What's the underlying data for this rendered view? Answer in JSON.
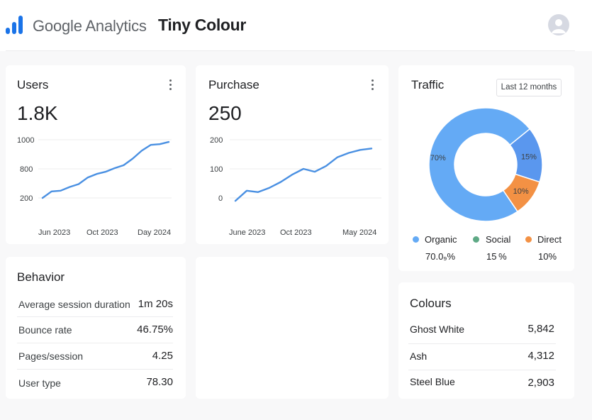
{
  "header": {
    "brand": "Google Analytics",
    "property": "Tiny Colour"
  },
  "users_card": {
    "title": "Users",
    "value": "1.8K",
    "y_ticks": [
      "1000",
      "800",
      "200"
    ],
    "x_ticks": [
      "Jun 2023",
      "Oct 2023",
      "Day 2024"
    ]
  },
  "purchase_card": {
    "title": "Purchase",
    "value": "250",
    "y_ticks": [
      "200",
      "100",
      "0"
    ],
    "x_ticks": [
      "June 2023",
      "Oct 2023",
      "May 2024"
    ]
  },
  "traffic_card": {
    "title": "Traffic",
    "range": "Last 12 months",
    "legend": [
      {
        "label": "Organic",
        "value": "70.0₉%",
        "color": "#64aaf5"
      },
      {
        "label": "Social",
        "value": "15 %",
        "color": "#5ea985"
      },
      {
        "label": "Direct",
        "value": "10%",
        "color": "#f39144"
      }
    ]
  },
  "behavior_card": {
    "title": "Behavior",
    "rows": [
      {
        "label": "Average session duration",
        "value": "1m 20s"
      },
      {
        "label": "Bounce rate",
        "value": "46.75%"
      },
      {
        "label": "Pages/session",
        "value": "4.25"
      },
      {
        "label": "User type",
        "value": "78.30"
      }
    ]
  },
  "colours_card": {
    "title": "Colours",
    "rows": [
      {
        "label": "Ghost White",
        "value": "5,842"
      },
      {
        "label": "Ash",
        "value": "4,312"
      },
      {
        "label": "Steel Blue",
        "value": "2,903"
      }
    ]
  },
  "chart_data": [
    {
      "type": "line",
      "title": "Users",
      "x": [
        "2023-04",
        "2023-05",
        "2023-06",
        "2023-07",
        "2023-08",
        "2023-09",
        "2023-10",
        "2023-11",
        "2023-12",
        "2024-01",
        "2024-02",
        "2024-03",
        "2024-04",
        "2024-05",
        "2024-06"
      ],
      "y": [
        200,
        290,
        300,
        350,
        390,
        480,
        530,
        560,
        610,
        650,
        740,
        850,
        930,
        940,
        970
      ],
      "x_ticks": [
        "Jun 2023",
        "Oct 2023",
        "Day 2024"
      ],
      "y_ticks": [
        "1000",
        "800",
        "200"
      ],
      "color": "#4a90e2"
    },
    {
      "type": "line",
      "title": "Purchase",
      "x": [
        "2023-05",
        "2023-06",
        "2023-07",
        "2023-08",
        "2023-09",
        "2023-10",
        "2023-11",
        "2023-12",
        "2024-01",
        "2024-02",
        "2024-03",
        "2024-04",
        "2024-05"
      ],
      "y": [
        -10,
        25,
        20,
        35,
        55,
        80,
        100,
        90,
        110,
        140,
        155,
        165,
        170
      ],
      "x_ticks": [
        "June 2023",
        "Oct 2023",
        "May 2024"
      ],
      "y_ticks": [
        "200",
        "100",
        "0"
      ],
      "color": "#4a90e2"
    },
    {
      "type": "pie",
      "title": "Traffic",
      "labels": [
        "Organic",
        "Social",
        "Direct"
      ],
      "values": [
        70,
        15,
        10
      ],
      "slice_labels": [
        "70%",
        "15%",
        "10%"
      ],
      "colors": [
        "#64aaf5",
        "#5a97ee",
        "#f39144"
      ]
    }
  ]
}
